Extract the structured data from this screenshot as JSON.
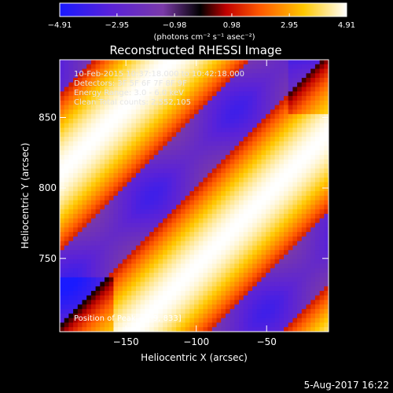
{
  "chart_data": {
    "type": "heatmap",
    "title": "Reconstructed RHESSI Image",
    "xlabel": "Heliocentric X (arcsec)",
    "ylabel": "Heliocentric Y (arcsec)",
    "xlim": [
      -197,
      -6
    ],
    "ylim": [
      698,
      891
    ],
    "x_ticks": [
      -150,
      -100,
      -50
    ],
    "y_ticks": [
      750,
      800,
      850
    ],
    "x_tick_labels": [
      "−150",
      "−100",
      "−50"
    ],
    "y_tick_labels": [
      "750",
      "800",
      "850"
    ],
    "colorbar": {
      "min": -4.91,
      "max": 4.91,
      "ticks": [
        -4.91,
        -2.95,
        -0.98,
        0.98,
        2.95,
        4.91
      ],
      "tick_labels": [
        "−4.91",
        "−2.95",
        "−0.98",
        "0.98",
        "2.95",
        "4.91"
      ],
      "colormap": "blue-purple-black-red-yellow-white",
      "stops": [
        "#1a1aff",
        "#5a22d8",
        "#7a3aa8",
        "#000000",
        "#c00000",
        "#ff5a00",
        "#ffc800",
        "#ffffff"
      ]
    },
    "annotations": {
      "time": "10-Feb-2015 10:37:18.000 to 10:42:18.000",
      "detectors": "Detectors: 3F 5F 6F 7F 8F 9F",
      "energy": "Energy Range: 3.0 - 6.0 keV",
      "clean": "Clean      Total counts: 2,552,105",
      "peak": "Position of Peak = [-9, 833]"
    },
    "grid": false
  },
  "colorbar_unit": "(photons cm⁻² s⁻¹ asec⁻²)",
  "footer_date": "5-Aug-2017 16:22"
}
